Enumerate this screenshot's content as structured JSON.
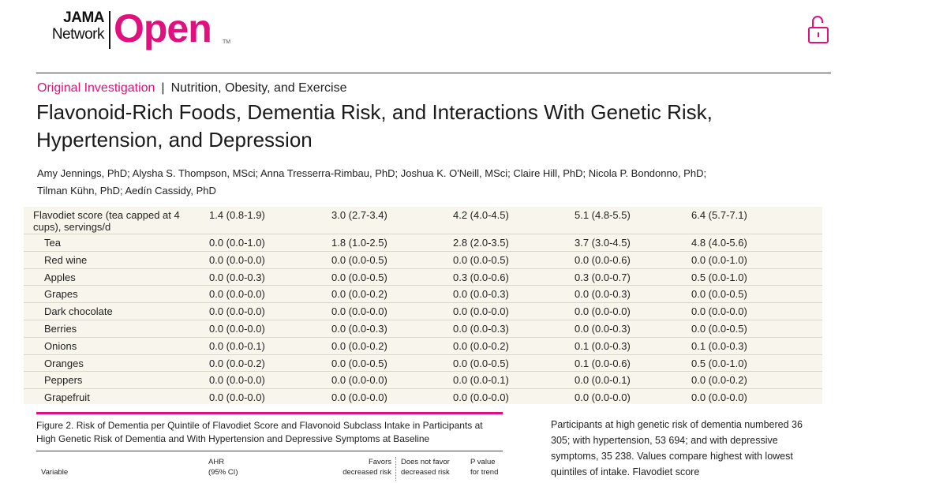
{
  "header": {
    "logo": {
      "line1": "JAMA",
      "line2": "Network",
      "brand": "Open",
      "tm": "TM"
    },
    "lock_icon": "unlocked-padlock-icon",
    "accent_color": "#e0117f"
  },
  "article": {
    "category": "Original Investigation",
    "separator": "|",
    "section": "Nutrition, Obesity, and Exercise",
    "title": "Flavonoid-Rich Foods, Dementia Risk, and Interactions With Genetic Risk, Hypertension, and Depression",
    "authors_line1": "Amy Jennings, PhD; Alysha S. Thompson, MSci; Anna Tresserra-Rimbau, PhD; Joshua K. O'Neill, MSci; Claire Hill, PhD; Nicola P. Bondonno, PhD;",
    "authors_line2": "Tilman Kühn, PhD; Aedín Cassidy, PhD"
  },
  "table": {
    "rows": [
      {
        "label": "Flavodiet score (tea capped at 4 cups), servings/d",
        "values": [
          "1.4 (0.8-1.9)",
          "3.0 (2.7-3.4)",
          "4.2 (4.0-4.5)",
          "5.1 (4.8-5.5)",
          "6.4 (5.7-7.1)"
        ]
      },
      {
        "label": "Tea",
        "values": [
          "0.0 (0.0-1.0)",
          "1.8 (1.0-2.5)",
          "2.8 (2.0-3.5)",
          "3.7 (3.0-4.5)",
          "4.8 (4.0-5.6)"
        ]
      },
      {
        "label": "Red wine",
        "values": [
          "0.0 (0.0-0.0)",
          "0.0 (0.0-0.5)",
          "0.0 (0.0-0.5)",
          "0.0 (0.0-0.6)",
          "0.0 (0.0-1.0)"
        ]
      },
      {
        "label": "Apples",
        "values": [
          "0.0 (0.0-0.3)",
          "0.0 (0.0-0.5)",
          "0.3 (0.0-0.6)",
          "0.3 (0.0-0.7)",
          "0.5 (0.0-1.0)"
        ]
      },
      {
        "label": "Grapes",
        "values": [
          "0.0 (0.0-0.0)",
          "0.0 (0.0-0.2)",
          "0.0 (0.0-0.3)",
          "0.0 (0.0-0.3)",
          "0.0 (0.0-0.5)"
        ]
      },
      {
        "label": "Dark chocolate",
        "values": [
          "0.0 (0.0-0.0)",
          "0.0 (0.0-0.0)",
          "0.0 (0.0-0.0)",
          "0.0 (0.0-0.0)",
          "0.0 (0.0-0.0)"
        ]
      },
      {
        "label": "Berries",
        "values": [
          "0.0 (0.0-0.0)",
          "0.0 (0.0-0.3)",
          "0.0 (0.0-0.3)",
          "0.0 (0.0-0.3)",
          "0.0 (0.0-0.5)"
        ]
      },
      {
        "label": "Onions",
        "values": [
          "0.0 (0.0-0.1)",
          "0.0 (0.0-0.2)",
          "0.0 (0.0-0.2)",
          "0.1 (0.0-0.3)",
          "0.1 (0.0-0.3)"
        ]
      },
      {
        "label": "Oranges",
        "values": [
          "0.0 (0.0-0.2)",
          "0.0 (0.0-0.5)",
          "0.0 (0.0-0.5)",
          "0.1 (0.0-0.6)",
          "0.5 (0.0-1.0)"
        ]
      },
      {
        "label": "Peppers",
        "values": [
          "0.0 (0.0-0.0)",
          "0.0 (0.0-0.0)",
          "0.0 (0.0-0.1)",
          "0.0 (0.0-0.1)",
          "0.0 (0.0-0.2)"
        ]
      },
      {
        "label": "Grapefruit",
        "values": [
          "0.0 (0.0-0.0)",
          "0.0 (0.0-0.0)",
          "0.0 (0.0-0.0)",
          "0.0 (0.0-0.0)",
          "0.0 (0.0-0.0)"
        ]
      }
    ]
  },
  "figure": {
    "caption": "Figure 2. Risk of Dementia per Quintile of Flavodiet Score and Flavonoid Subclass Intake in Participants at High Genetic Risk of Dementia and With Hypertension and Depressive Symptoms at Baseline",
    "headers": {
      "variable": "Variable",
      "ahr_1": "AHR",
      "ahr_2": "(95% CI)",
      "favors_1": "Favors",
      "favors_2": "decreased risk",
      "not_favor_1": "Does not favor",
      "not_favor_2": "decreased risk",
      "p_1": "P value",
      "p_2": "for trend"
    }
  },
  "side_text": "Participants at high genetic risk of dementia numbered 36 305; with hypertension, 53 694; and with depressive symptoms, 35 238. Values compare highest with lowest quintiles of intake. Flavodiet score"
}
